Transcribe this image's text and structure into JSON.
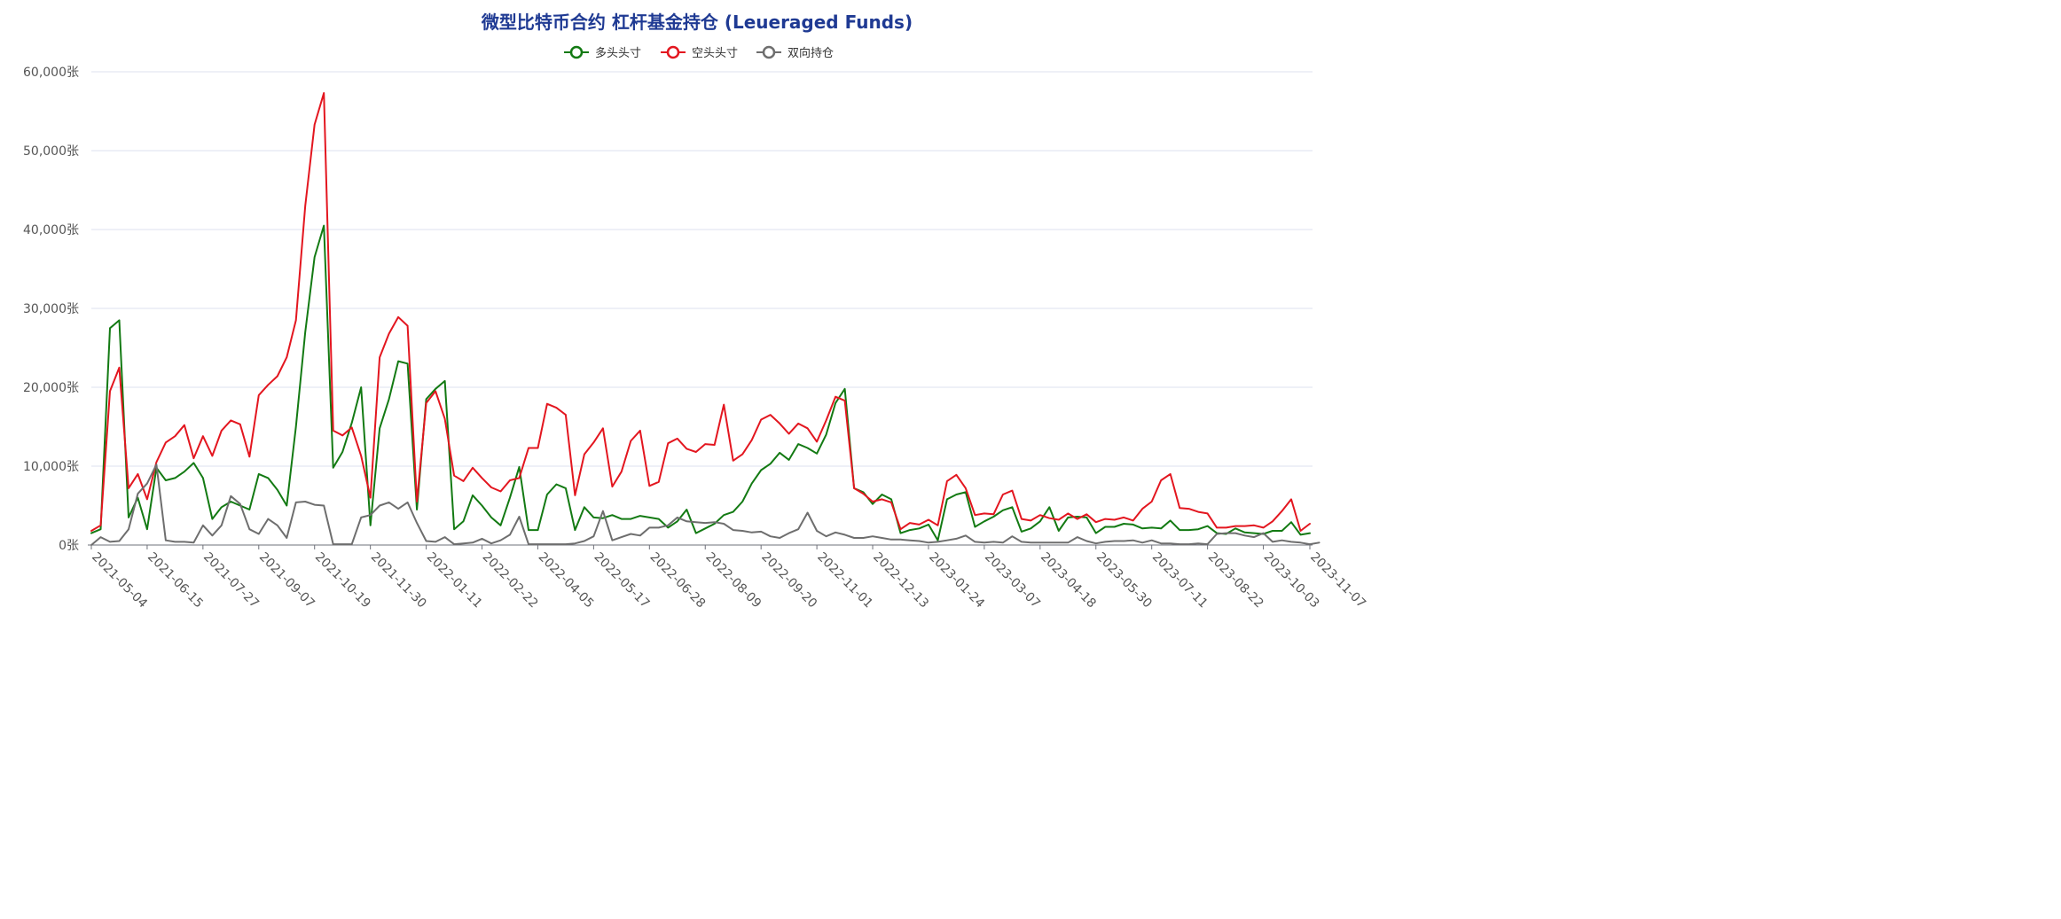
{
  "chart_data": {
    "type": "line",
    "title": "微型比特币合约 杠杆基金持仓 (Leueraged Funds)",
    "ylim": [
      0,
      60000
    ],
    "y_ticks": [
      "0张",
      "10,000张",
      "20,000张",
      "30,000张",
      "40,000张",
      "50,000张",
      "60,000张"
    ],
    "y_tick_values": [
      0,
      10000,
      20000,
      30000,
      40000,
      50000,
      60000
    ],
    "x_tick_labels": [
      "2021-05-04",
      "2021-06-15",
      "2021-07-27",
      "2021-09-07",
      "2021-10-19",
      "2021-11-30",
      "2022-01-11",
      "2022-02-22",
      "2022-04-05",
      "2022-05-17",
      "2022-06-28",
      "2022-08-09",
      "2022-09-20",
      "2022-11-01",
      "2022-12-13",
      "2023-01-24",
      "2023-03-07",
      "2023-04-18",
      "2023-05-30",
      "2023-07-11",
      "2023-08-22",
      "2023-10-03",
      "2023-11-07"
    ],
    "x_tick_positions": [
      0,
      6,
      12,
      18,
      24,
      30,
      36,
      42,
      48,
      54,
      60,
      66,
      72,
      78,
      84,
      90,
      96,
      102,
      108,
      114,
      120,
      126,
      131
    ],
    "x_count": 132,
    "grid": true,
    "legend_position": "top-center",
    "series": [
      {
        "name": "多头头寸",
        "color": "#137a13",
        "values": [
          1500,
          2000,
          27500,
          28500,
          3500,
          6000,
          2000,
          9800,
          8200,
          8500,
          9300,
          10400,
          8500,
          3300,
          4800,
          5500,
          5000,
          4500,
          9000,
          8500,
          7000,
          5000,
          15000,
          27000,
          36500,
          40500,
          9800,
          11800,
          15500,
          20000,
          2500,
          14800,
          18500,
          23300,
          23000,
          4500,
          18500,
          19800,
          20800,
          2000,
          3000,
          6300,
          5000,
          3500,
          2500,
          6000,
          9900,
          1900,
          1900,
          6400,
          7700,
          7200,
          1900,
          4800,
          3500,
          3400,
          3800,
          3300,
          3300,
          3700,
          3500,
          3300,
          2200,
          3000,
          4500,
          1500,
          2100,
          2700,
          3800,
          4200,
          5500,
          7800,
          9500,
          10300,
          11700,
          10800,
          12800,
          12300,
          11600,
          14000,
          18000,
          19800,
          7200,
          6700,
          5200,
          6400,
          5800,
          1500,
          1900,
          2100,
          2600,
          600,
          5800,
          6400,
          6700,
          2300,
          3000,
          3600,
          4400,
          4800,
          1700,
          2100,
          3000,
          4800,
          1800,
          3500,
          3600,
          3500,
          1500,
          2300,
          2300,
          2700,
          2600,
          2100,
          2200,
          2100,
          3100,
          1900,
          1900,
          2000,
          2400,
          1500,
          1400,
          2100,
          1600,
          1500,
          1400,
          1800,
          1800,
          2900,
          1300,
          1500
        ]
      },
      {
        "name": "空头头寸",
        "color": "#e3161f",
        "values": [
          1800,
          2500,
          19500,
          22500,
          7200,
          9000,
          5800,
          10500,
          13000,
          13800,
          15200,
          11000,
          13800,
          11300,
          14500,
          15800,
          15300,
          11200,
          19000,
          20300,
          21400,
          23800,
          28500,
          43000,
          53300,
          57300,
          14500,
          13900,
          14900,
          11300,
          6000,
          23800,
          26800,
          28900,
          27800,
          5500,
          18000,
          19500,
          16000,
          8800,
          8100,
          9800,
          8500,
          7300,
          6800,
          8200,
          8500,
          12300,
          12300,
          17900,
          17400,
          16500,
          6300,
          11500,
          13000,
          14800,
          7400,
          9300,
          13200,
          14500,
          7500,
          8000,
          12900,
          13500,
          12200,
          11800,
          12800,
          12700,
          17800,
          10700,
          11500,
          13300,
          15900,
          16500,
          15400,
          14100,
          15400,
          14800,
          13100,
          15800,
          18800,
          18300,
          7200,
          6500,
          5500,
          5800,
          5400,
          2000,
          2800,
          2600,
          3200,
          2500,
          8100,
          8900,
          7200,
          3800,
          4000,
          3900,
          6400,
          6900,
          3300,
          3100,
          3800,
          3400,
          3200,
          4000,
          3300,
          3900,
          2900,
          3300,
          3200,
          3500,
          3100,
          4600,
          5500,
          8200,
          9000,
          4700,
          4600,
          4200,
          4000,
          2200,
          2200,
          2400,
          2400,
          2500,
          2200,
          3000,
          4300,
          5800,
          1800,
          2700
        ]
      },
      {
        "name": "双向持仓",
        "color": "#6e6e6e",
        "values": [
          0,
          1000,
          400,
          500,
          2000,
          6500,
          7800,
          10200,
          600,
          400,
          400,
          300,
          2500,
          1200,
          2500,
          6200,
          5200,
          2000,
          1400,
          3300,
          2500,
          900,
          5400,
          5500,
          5100,
          5000,
          100,
          100,
          100,
          3500,
          3800,
          5000,
          5400,
          4600,
          5400,
          2800,
          500,
          400,
          1000,
          100,
          200,
          300,
          800,
          200,
          600,
          1300,
          3600,
          100,
          100,
          100,
          100,
          100,
          200,
          500,
          1100,
          4300,
          600,
          1000,
          1400,
          1200,
          2200,
          2200,
          2500,
          3500,
          3000,
          2900,
          2800,
          2900,
          2700,
          1900,
          1800,
          1600,
          1700,
          1100,
          900,
          1500,
          2000,
          4100,
          1800,
          1100,
          1600,
          1300,
          900,
          900,
          1100,
          900,
          700,
          700,
          600,
          500,
          300,
          400,
          600,
          800,
          1200,
          400,
          300,
          400,
          300,
          1100,
          400,
          300,
          300,
          300,
          300,
          300,
          1000,
          500,
          200,
          400,
          500,
          500,
          600,
          300,
          600,
          200,
          200,
          100,
          100,
          200,
          100,
          1400,
          1500,
          1500,
          1200,
          1000,
          1500,
          400,
          600,
          400,
          300,
          100,
          300
        ]
      }
    ]
  }
}
